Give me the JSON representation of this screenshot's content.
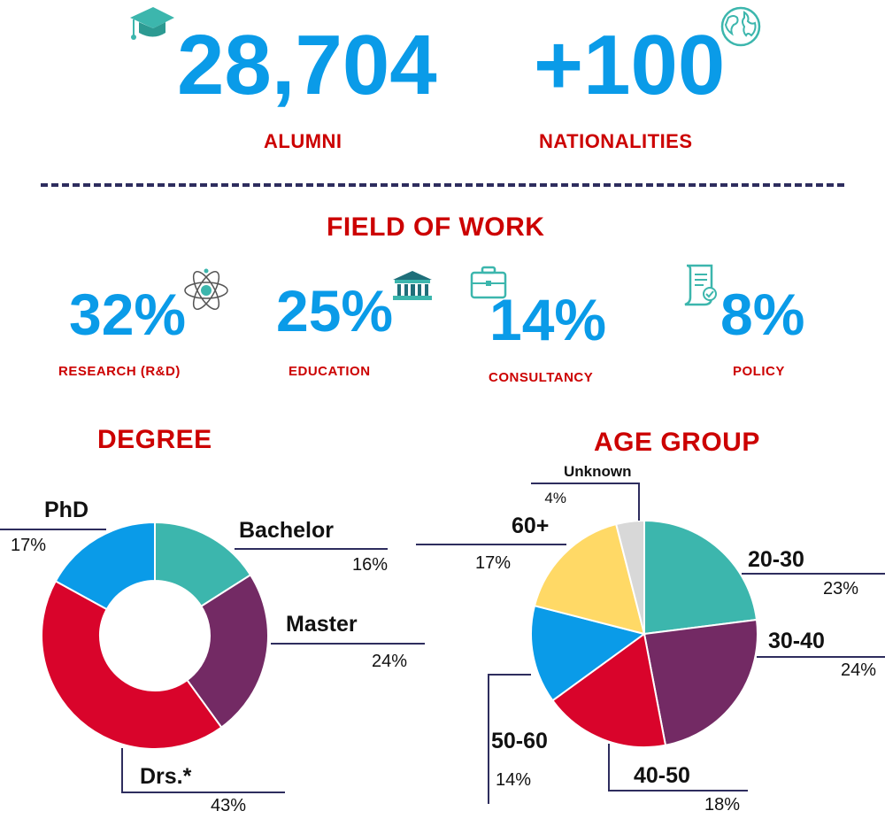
{
  "stats": {
    "alumni_value": "28,704",
    "alumni_label": "ALUMNI",
    "nationalities_value": "+100",
    "nationalities_label": "NATIONALITIES"
  },
  "field_of_work": {
    "title": "FIELD OF WORK",
    "items": [
      {
        "value": "32%",
        "label": "RESEARCH (R&D)",
        "icon": "atom-icon"
      },
      {
        "value": "25%",
        "label": "EDUCATION",
        "icon": "building-icon"
      },
      {
        "value": "14%",
        "label": "CONSULTANCY",
        "icon": "briefcase-icon"
      },
      {
        "value": "8%",
        "label": "POLICY",
        "icon": "document-icon"
      }
    ]
  },
  "colors": {
    "accent_blue": "#0a9be8",
    "label_red": "#cc0000",
    "divider": "#2e2d5e",
    "teal": "#3cb6ad",
    "purple": "#732a64",
    "crimson": "#d9042b",
    "blue": "#0a9be8",
    "yellow": "#ffd966",
    "grey": "#d8d8d8"
  },
  "chart_data": [
    {
      "type": "pie",
      "variant": "donut",
      "title": "DEGREE",
      "categories": [
        "Bachelor",
        "Master",
        "Drs.*",
        "PhD"
      ],
      "values": [
        16,
        24,
        43,
        17
      ],
      "labels": [
        "16%",
        "24%",
        "43%",
        "17%"
      ],
      "colors": [
        "#3cb6ad",
        "#732a64",
        "#d9042b",
        "#0a9be8"
      ]
    },
    {
      "type": "pie",
      "title": "AGE GROUP",
      "categories": [
        "20-30",
        "30-40",
        "40-50",
        "50-60",
        "60+",
        "Unknown"
      ],
      "values": [
        23,
        24,
        18,
        14,
        17,
        4
      ],
      "labels": [
        "23%",
        "24%",
        "18%",
        "14%",
        "17%",
        "4%"
      ],
      "colors": [
        "#3cb6ad",
        "#732a64",
        "#d9042b",
        "#0a9be8",
        "#ffd966",
        "#d8d8d8"
      ]
    }
  ]
}
